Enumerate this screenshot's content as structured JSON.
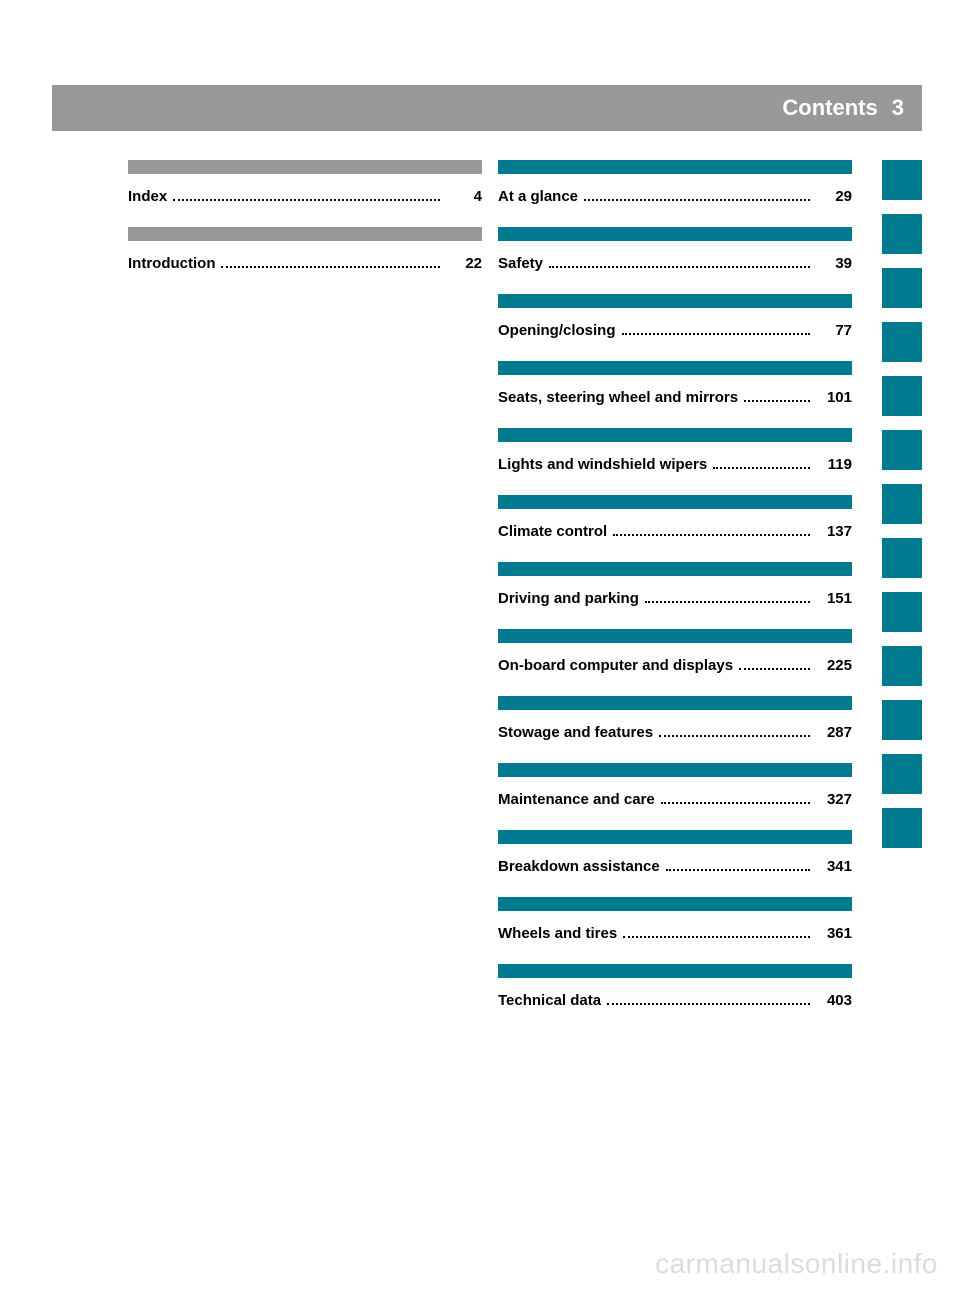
{
  "header": {
    "title": "Contents",
    "page": "3"
  },
  "left": [
    {
      "bar": "gray",
      "label": "Index",
      "page": "4"
    },
    {
      "bar": "gray",
      "label": "Introduction",
      "page": "22"
    }
  ],
  "right": [
    {
      "bar": "teal",
      "label": "At a glance",
      "page": "29"
    },
    {
      "bar": "teal",
      "label": "Safety",
      "page": "39"
    },
    {
      "bar": "teal",
      "label": "Opening/closing",
      "page": "77"
    },
    {
      "bar": "teal",
      "label": "Seats, steering wheel and mirrors",
      "page": "101"
    },
    {
      "bar": "teal",
      "label": "Lights and windshield wipers",
      "page": "119"
    },
    {
      "bar": "teal",
      "label": "Climate control",
      "page": "137"
    },
    {
      "bar": "teal",
      "label": "Driving and parking",
      "page": "151"
    },
    {
      "bar": "teal",
      "label": "On-board computer and displays",
      "page": "225"
    },
    {
      "bar": "teal",
      "label": "Stowage and features",
      "page": "287"
    },
    {
      "bar": "teal",
      "label": "Maintenance and care",
      "page": "327"
    },
    {
      "bar": "teal",
      "label": "Breakdown assistance",
      "page": "341"
    },
    {
      "bar": "teal",
      "label": "Wheels and tires",
      "page": "361"
    },
    {
      "bar": "teal",
      "label": "Technical data",
      "page": "403"
    }
  ],
  "tab_count": 13,
  "colors": {
    "gray": "#97989a",
    "teal": "#007a8e",
    "text": "#000000",
    "watermark": "#dcdcdc"
  },
  "watermark": "carmanualsonline.info"
}
